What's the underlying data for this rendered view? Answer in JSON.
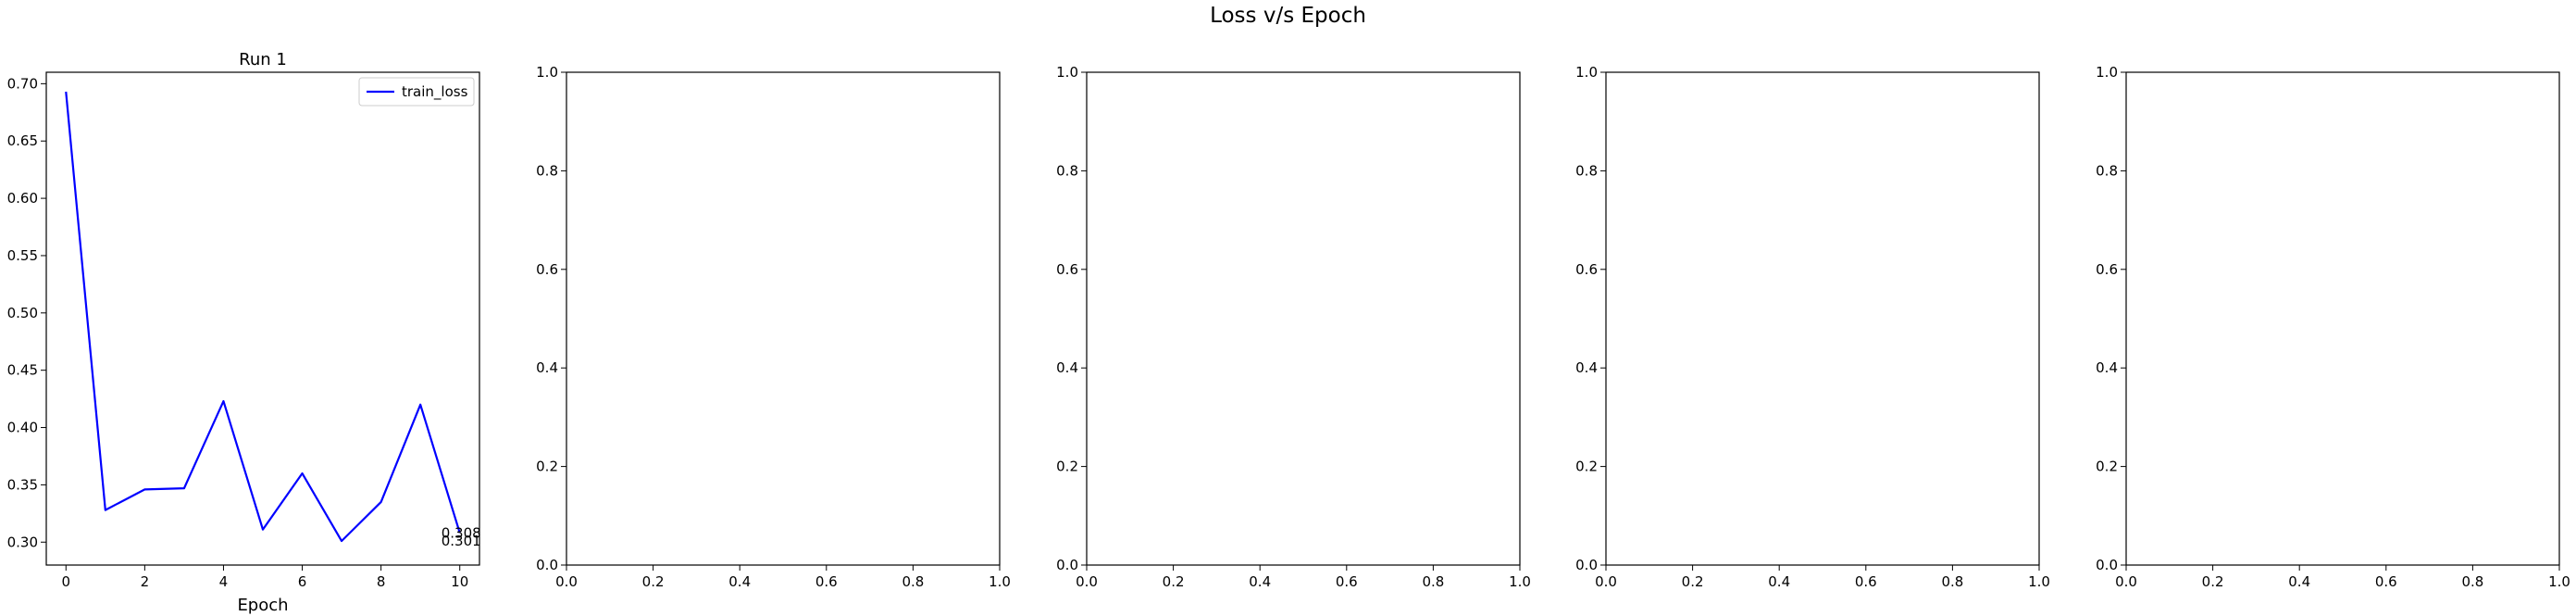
{
  "figure": {
    "title": "Loss v/s Epoch"
  },
  "chart_data": [
    {
      "type": "line",
      "title": "Run 1",
      "xlabel": "Epoch",
      "ylabel": "",
      "xlim": [
        -0.5,
        10.5
      ],
      "ylim": [
        0.28,
        0.71
      ],
      "xticks": [
        0,
        2,
        4,
        6,
        8,
        10
      ],
      "yticks": [
        0.3,
        0.35,
        0.4,
        0.45,
        0.5,
        0.55,
        0.6,
        0.65,
        0.7
      ],
      "x": [
        0,
        1,
        2,
        3,
        4,
        5,
        6,
        7,
        8,
        9,
        10
      ],
      "series": [
        {
          "name": "train_loss",
          "color": "#0000ff",
          "values": [
            0.693,
            0.328,
            0.346,
            0.347,
            0.423,
            0.311,
            0.36,
            0.301,
            0.335,
            0.42,
            0.308
          ]
        }
      ],
      "annotations": [
        {
          "text": "0.308",
          "x": 10,
          "y": 0.308
        },
        {
          "text": "0.301",
          "x": 10,
          "y": 0.301
        }
      ],
      "legend": "upper-right",
      "grid": false
    },
    {
      "type": "line",
      "title": "",
      "xlabel": "",
      "ylabel": "",
      "xlim": [
        0,
        1
      ],
      "ylim": [
        0,
        1
      ],
      "xticks": [
        0.0,
        0.2,
        0.4,
        0.6,
        0.8,
        1.0
      ],
      "yticks": [
        0.0,
        0.2,
        0.4,
        0.6,
        0.8,
        1.0
      ],
      "series": [],
      "grid": false
    },
    {
      "type": "line",
      "title": "",
      "xlabel": "",
      "ylabel": "",
      "xlim": [
        0,
        1
      ],
      "ylim": [
        0,
        1
      ],
      "xticks": [
        0.0,
        0.2,
        0.4,
        0.6,
        0.8,
        1.0
      ],
      "yticks": [
        0.0,
        0.2,
        0.4,
        0.6,
        0.8,
        1.0
      ],
      "series": [],
      "grid": false
    },
    {
      "type": "line",
      "title": "",
      "xlabel": "",
      "ylabel": "",
      "xlim": [
        0,
        1
      ],
      "ylim": [
        0,
        1
      ],
      "xticks": [
        0.0,
        0.2,
        0.4,
        0.6,
        0.8,
        1.0
      ],
      "yticks": [
        0.0,
        0.2,
        0.4,
        0.6,
        0.8,
        1.0
      ],
      "series": [],
      "grid": false
    },
    {
      "type": "line",
      "title": "",
      "xlabel": "",
      "ylabel": "",
      "xlim": [
        0,
        1
      ],
      "ylim": [
        0,
        1
      ],
      "xticks": [
        0.0,
        0.2,
        0.4,
        0.6,
        0.8,
        1.0
      ],
      "yticks": [
        0.0,
        0.2,
        0.4,
        0.6,
        0.8,
        1.0
      ],
      "series": [],
      "grid": false
    }
  ]
}
